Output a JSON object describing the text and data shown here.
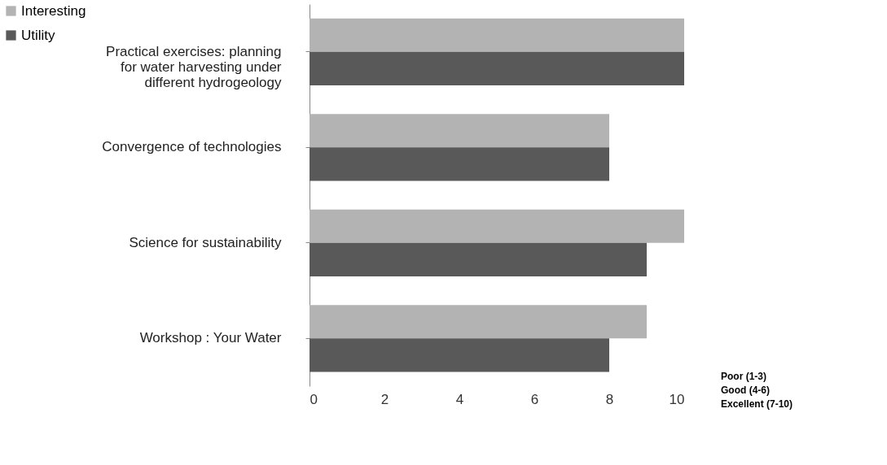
{
  "chart_data": {
    "type": "bar",
    "orientation": "horizontal",
    "categories": [
      "Practical exercises: planning for water harvesting under different hydrogeology",
      "Convergence of technologies",
      "Science for sustainability",
      "Workshop : Your Water"
    ],
    "series": [
      {
        "name": "Interesting",
        "color": "#b3b3b3",
        "values": [
          10,
          8,
          10,
          9
        ]
      },
      {
        "name": "Utility",
        "color": "#595959",
        "values": [
          10,
          8,
          9,
          8
        ]
      }
    ],
    "xlim": [
      0,
      10
    ],
    "xticks": [
      0,
      2,
      4,
      6,
      8,
      10
    ],
    "grid": false,
    "legend": "top left",
    "annotations": [
      "Poor (1-3)",
      "Good (4-6)",
      "Excellent (7-10)"
    ]
  }
}
